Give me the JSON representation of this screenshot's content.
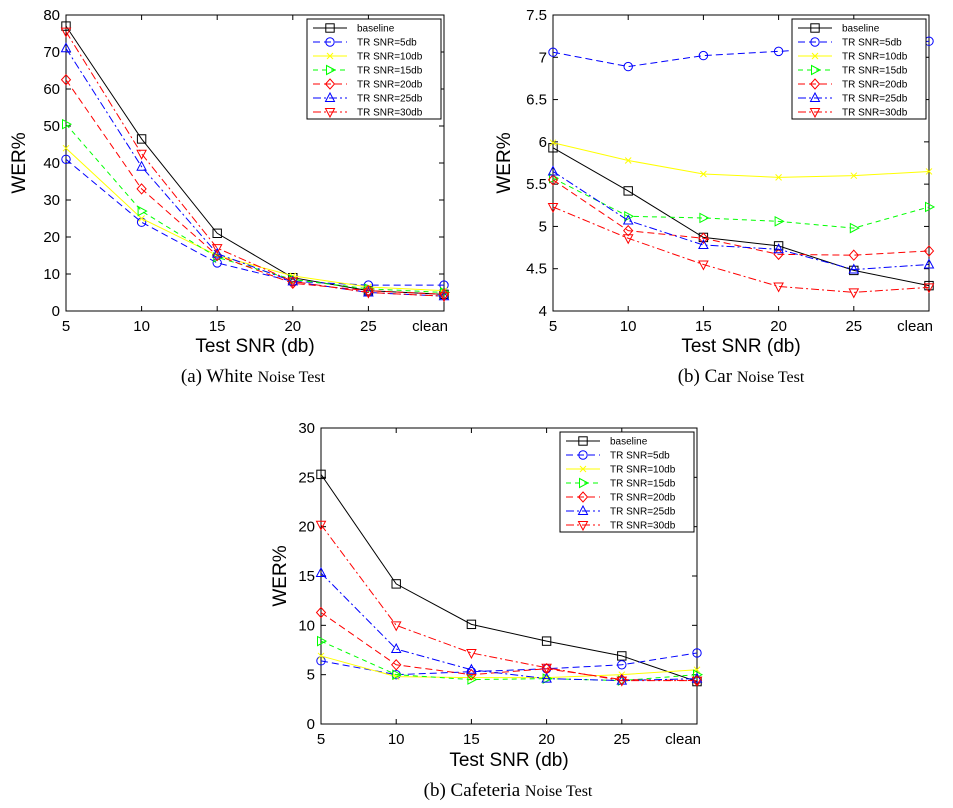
{
  "figure": {
    "styles": {
      "baseline": {
        "color": "#000000",
        "dash": "",
        "marker": "square"
      },
      "TR SNR=5db": {
        "color": "#0000ff",
        "dash": "7,4",
        "marker": "circle"
      },
      "TR SNR=10db": {
        "color": "#ffff00",
        "dash": "",
        "marker": "x"
      },
      "TR SNR=15db": {
        "color": "#00ff00",
        "dash": "5,4",
        "marker": "triangle-right"
      },
      "TR SNR=20db": {
        "color": "#ff0000",
        "dash": "7,4",
        "marker": "diamond"
      },
      "TR SNR=25db": {
        "color": "#0000ff",
        "dash": "8,3,2,3",
        "marker": "triangle-up"
      },
      "TR SNR=30db": {
        "color": "#ff0000",
        "dash": "8,3,2,3",
        "marker": "triangle-down"
      }
    }
  },
  "chart_data": [
    {
      "type": "line",
      "title": "",
      "caption": {
        "label": "(a)",
        "big": "White",
        "rest": "Noise Test"
      },
      "xlabel": "Test SNR (db)",
      "ylabel": "WER%",
      "categories": [
        "5",
        "10",
        "15",
        "20",
        "25",
        "clean"
      ],
      "ylim": [
        0,
        80
      ],
      "yticks": [
        "0",
        "10",
        "20",
        "30",
        "40",
        "50",
        "60",
        "70",
        "80"
      ],
      "legend_position": "top-right",
      "series": [
        {
          "name": "baseline",
          "values": [
            77,
            46.5,
            21,
            9,
            5.5,
            4.5
          ]
        },
        {
          "name": "TR SNR=5db",
          "values": [
            41,
            24,
            13,
            8,
            7,
            7
          ]
        },
        {
          "name": "TR SNR=10db",
          "values": [
            44,
            25,
            15,
            9.5,
            6.5,
            5.5
          ]
        },
        {
          "name": "TR SNR=15db",
          "values": [
            50.5,
            27,
            14.5,
            8.5,
            6,
            5
          ]
        },
        {
          "name": "TR SNR=20db",
          "values": [
            62.5,
            33,
            15,
            7.5,
            5.5,
            4.5
          ]
        },
        {
          "name": "TR SNR=25db",
          "values": [
            71,
            39,
            15.5,
            8,
            5,
            4
          ]
        },
        {
          "name": "TR SNR=30db",
          "values": [
            75.5,
            42.5,
            17,
            8,
            5,
            4
          ]
        }
      ]
    },
    {
      "type": "line",
      "title": "",
      "caption": {
        "label": "(b)",
        "big": "Car",
        "rest": "Noise Test"
      },
      "xlabel": "Test SNR (db)",
      "ylabel": "WER%",
      "categories": [
        "5",
        "10",
        "15",
        "20",
        "25",
        "clean"
      ],
      "ylim": [
        4,
        7.5
      ],
      "yticks": [
        "4",
        "4.5",
        "5",
        "5.5",
        "6",
        "6.5",
        "7",
        "7.5"
      ],
      "legend_position": "top-right",
      "series": [
        {
          "name": "baseline",
          "values": [
            5.93,
            5.42,
            4.87,
            4.77,
            4.48,
            4.3
          ]
        },
        {
          "name": "TR SNR=5db",
          "values": [
            7.06,
            6.89,
            7.02,
            7.07,
            7.12,
            7.19
          ]
        },
        {
          "name": "TR SNR=10db",
          "values": [
            5.99,
            5.78,
            5.62,
            5.58,
            5.6,
            5.65
          ]
        },
        {
          "name": "TR SNR=15db",
          "values": [
            5.57,
            5.12,
            5.1,
            5.06,
            4.98,
            5.23
          ]
        },
        {
          "name": "TR SNR=20db",
          "values": [
            5.55,
            4.95,
            4.86,
            4.67,
            4.66,
            4.71
          ]
        },
        {
          "name": "TR SNR=25db",
          "values": [
            5.65,
            5.07,
            4.78,
            4.73,
            4.49,
            4.55
          ]
        },
        {
          "name": "TR SNR=30db",
          "values": [
            5.23,
            4.86,
            4.55,
            4.29,
            4.22,
            4.28
          ]
        }
      ]
    },
    {
      "type": "line",
      "title": "",
      "caption": {
        "label": "(b)",
        "big": "Cafeteria",
        "rest": "Noise Test"
      },
      "xlabel": "Test SNR (db)",
      "ylabel": "WER%",
      "categories": [
        "5",
        "10",
        "15",
        "20",
        "25",
        "clean"
      ],
      "ylim": [
        0,
        30
      ],
      "yticks": [
        "0",
        "5",
        "10",
        "15",
        "20",
        "25",
        "30"
      ],
      "legend_position": "top-right",
      "series": [
        {
          "name": "baseline",
          "values": [
            25.3,
            14.2,
            10.1,
            8.4,
            6.9,
            4.3
          ]
        },
        {
          "name": "TR SNR=5db",
          "values": [
            6.4,
            5,
            5.3,
            5.6,
            6,
            7.2
          ]
        },
        {
          "name": "TR SNR=10db",
          "values": [
            6.9,
            4.8,
            4.7,
            4.7,
            5,
            5.5
          ]
        },
        {
          "name": "TR SNR=15db",
          "values": [
            8.4,
            5,
            4.5,
            4.6,
            4.4,
            5
          ]
        },
        {
          "name": "TR SNR=20db",
          "values": [
            11.3,
            6,
            5,
            5.6,
            4.5,
            4.4
          ]
        },
        {
          "name": "TR SNR=25db",
          "values": [
            15.3,
            7.6,
            5.5,
            4.6,
            4.4,
            4.6
          ]
        },
        {
          "name": "TR SNR=30db",
          "values": [
            20.2,
            10,
            7.2,
            5.7,
            4.4,
            4.4
          ]
        }
      ]
    }
  ]
}
